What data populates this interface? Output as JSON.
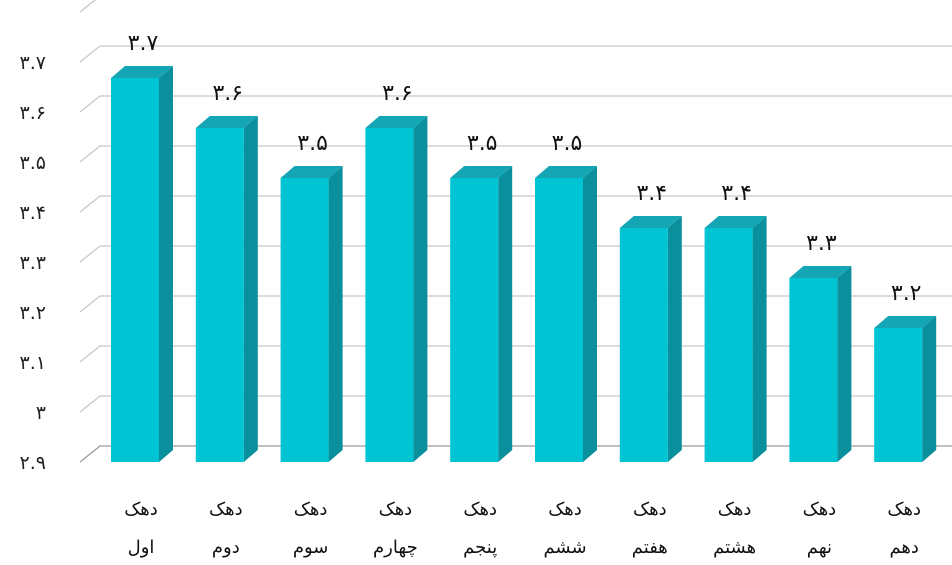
{
  "chart_data": {
    "type": "bar",
    "style": "3d-column",
    "categories": [
      [
        "دهک",
        "اول"
      ],
      [
        "دهک",
        "دوم"
      ],
      [
        "دهک",
        "سوم"
      ],
      [
        "دهک",
        "چهارم"
      ],
      [
        "دهک",
        "پنجم"
      ],
      [
        "دهک",
        "ششم"
      ],
      [
        "دهک",
        "هفتم"
      ],
      [
        "دهک",
        "هشتم"
      ],
      [
        "دهک",
        "نهم"
      ],
      [
        "دهک",
        "دهم"
      ]
    ],
    "values": [
      3.7,
      3.6,
      3.5,
      3.6,
      3.5,
      3.5,
      3.4,
      3.4,
      3.3,
      3.2
    ],
    "value_labels": [
      "۳.۷",
      "۳.۶",
      "۳.۵",
      "۳.۶",
      "۳.۵",
      "۳.۵",
      "۳.۴",
      "۳.۴",
      "۳.۳",
      "۳.۲"
    ],
    "y_ticks": [
      2.9,
      3.0,
      3.1,
      3.2,
      3.3,
      3.4,
      3.5,
      3.6,
      3.7,
      3.8
    ],
    "y_tick_labels": [
      "۲.۹",
      "۳",
      "۳.۱",
      "۳.۲",
      "۳.۳",
      "۳.۴",
      "۳.۵",
      "۳.۶",
      "۳.۷",
      ""
    ],
    "ylim": [
      2.9,
      3.8
    ],
    "grid": true,
    "legend": "none",
    "colors": {
      "bar_front": "#00c3d4",
      "bar_side": "#0a8f9c",
      "bar_top": "#14a6b4"
    }
  }
}
